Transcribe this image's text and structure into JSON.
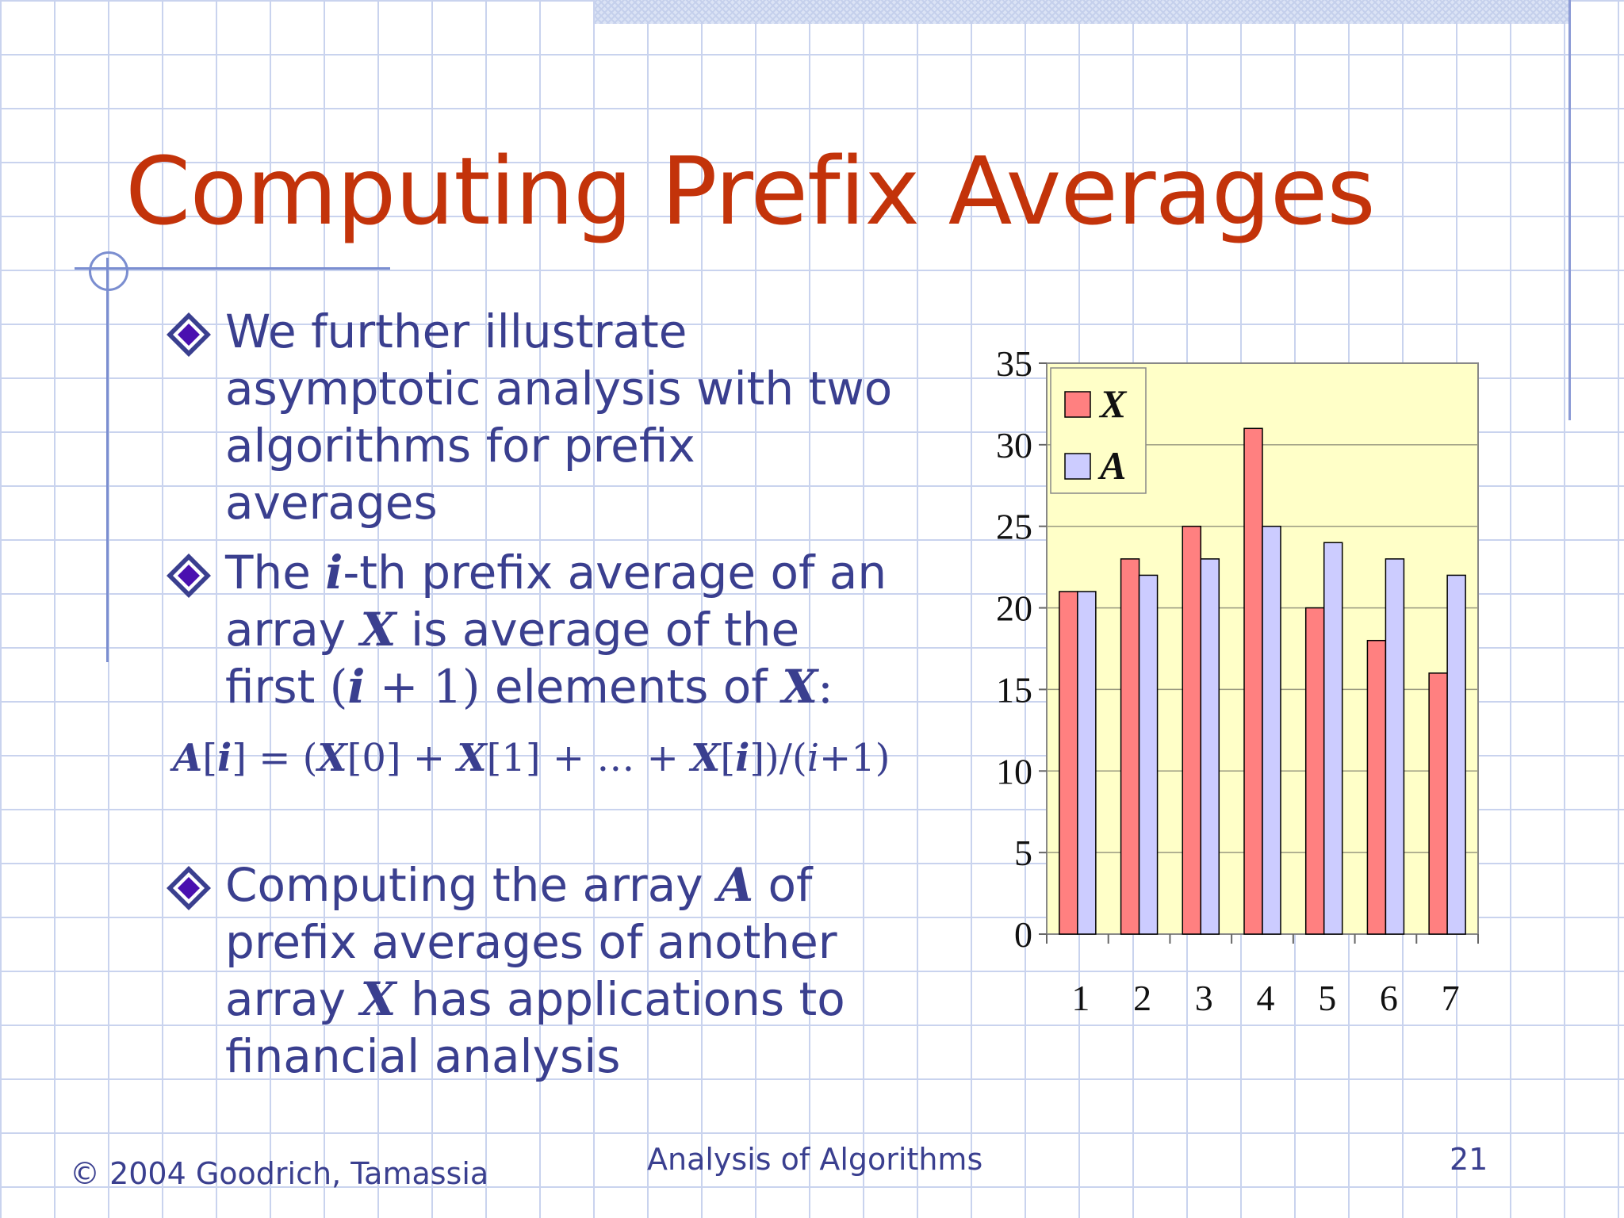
{
  "slide": {
    "title": "Computing Prefix Averages",
    "bullet1": "We further illustrate asymptotic analysis with two algorithms for prefix averages",
    "bullet2": {
      "t1": "The ",
      "i": "i",
      "t2": "-th prefix average of an array ",
      "X": "X",
      "t3": " is average of the first ",
      "paren": "(",
      "i2": "i",
      "plus1": " + 1)",
      "t4": " elements of ",
      "X2": "X",
      "colon": ":"
    },
    "formula": {
      "lhs_a": "A",
      "lhs_rest": "[",
      "lhs_i": "i",
      "lhs_close": "] =  (",
      "x0": "X",
      "x0r": "[0] + ",
      "x1": "X",
      "x1r": "[1] + … + ",
      "xi": "X",
      "xir1": "[",
      "xii": "i",
      "xir2": "])/(",
      "den_i": "i",
      "den_r": "+1)"
    },
    "bullet3": {
      "t1": "Computing the array ",
      "A": "A",
      "t2": " of prefix averages of another array ",
      "X": "X",
      "t3": " has applications to financial analysis"
    }
  },
  "footer": {
    "copyright": "© 2004 Goodrich, Tamassia",
    "course": "Analysis of Algorithms",
    "page": "21"
  },
  "colors": {
    "title": "#c3330a",
    "text": "#3a3f8f",
    "series_x": "#ff8080",
    "series_a": "#ccccff",
    "plot_bg": "#ffffc8"
  },
  "chart_data": {
    "type": "bar",
    "categories": [
      "1",
      "2",
      "3",
      "4",
      "5",
      "6",
      "7"
    ],
    "series": [
      {
        "name": "X",
        "values": [
          21,
          23,
          25,
          31,
          20,
          18,
          16
        ]
      },
      {
        "name": "A",
        "values": [
          21,
          22,
          23,
          25,
          24,
          23,
          22
        ]
      }
    ],
    "yticks": [
      "0",
      "5",
      "10",
      "15",
      "20",
      "25",
      "30",
      "35"
    ],
    "ylim": [
      0,
      35
    ],
    "grid": true,
    "legend": "top-left"
  }
}
